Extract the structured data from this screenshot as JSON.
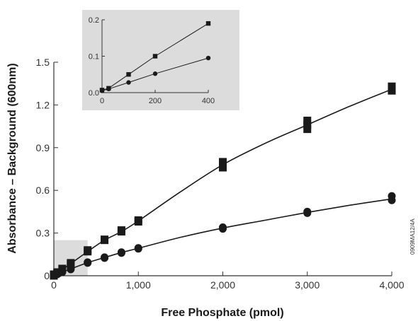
{
  "chart_data": [
    {
      "type": "scatter",
      "xlabel": "Free Phosphate (pmol)",
      "ylabel": "Absorbance – Background (600nm)",
      "xlim": [
        0,
        4000
      ],
      "ylim": [
        0,
        1.5
      ],
      "x_ticks": [
        0,
        1000,
        2000,
        3000,
        4000
      ],
      "x_tick_labels": [
        "0",
        "1,000",
        "2,000",
        "3,000",
        "4,000"
      ],
      "y_ticks": [
        0,
        0.3,
        0.6,
        0.9,
        1.2,
        1.5
      ],
      "y_tick_labels": [
        "0",
        "0.3",
        "0.6",
        "0.9",
        "1.2",
        "1.5"
      ],
      "grid": false,
      "highlight_region": {
        "x": [
          0,
          400
        ],
        "y": [
          0,
          0.25
        ]
      },
      "series": [
        {
          "marker": "square",
          "color": "#1a1a1a",
          "points": [
            [
              0,
              0.0
            ],
            [
              0,
              0.01
            ],
            [
              40,
              0.02
            ],
            [
              40,
              0.025
            ],
            [
              100,
              0.05
            ],
            [
              100,
              0.045
            ],
            [
              200,
              0.09
            ],
            [
              200,
              0.08
            ],
            [
              400,
              0.17
            ],
            [
              400,
              0.18
            ],
            [
              600,
              0.25
            ],
            [
              600,
              0.255
            ],
            [
              800,
              0.31
            ],
            [
              800,
              0.32
            ],
            [
              1000,
              0.38
            ],
            [
              1000,
              0.39
            ],
            [
              2000,
              0.76
            ],
            [
              2000,
              0.8
            ],
            [
              3000,
              1.03
            ],
            [
              3000,
              1.06
            ],
            [
              3000,
              1.09
            ],
            [
              4000,
              1.3
            ],
            [
              4000,
              1.33
            ]
          ],
          "curve": [
            [
              0,
              0.0
            ],
            [
              200,
              0.085
            ],
            [
              400,
              0.17
            ],
            [
              600,
              0.25
            ],
            [
              800,
              0.31
            ],
            [
              1000,
              0.385
            ],
            [
              1500,
              0.59
            ],
            [
              2000,
              0.78
            ],
            [
              2500,
              0.93
            ],
            [
              3000,
              1.06
            ],
            [
              3500,
              1.19
            ],
            [
              4000,
              1.31
            ]
          ]
        },
        {
          "marker": "circle",
          "color": "#1a1a1a",
          "points": [
            [
              0,
              0.0
            ],
            [
              0,
              0.01
            ],
            [
              40,
              0.01
            ],
            [
              40,
              0.015
            ],
            [
              100,
              0.03
            ],
            [
              100,
              0.025
            ],
            [
              200,
              0.05
            ],
            [
              200,
              0.045
            ],
            [
              400,
              0.09
            ],
            [
              400,
              0.095
            ],
            [
              600,
              0.13
            ],
            [
              600,
              0.125
            ],
            [
              800,
              0.16
            ],
            [
              800,
              0.165
            ],
            [
              1000,
              0.19
            ],
            [
              1000,
              0.195
            ],
            [
              2000,
              0.33
            ],
            [
              2000,
              0.34
            ],
            [
              3000,
              0.44
            ],
            [
              3000,
              0.45
            ],
            [
              4000,
              0.53
            ],
            [
              4000,
              0.56
            ]
          ],
          "curve": [
            [
              0,
              0.0
            ],
            [
              200,
              0.048
            ],
            [
              400,
              0.092
            ],
            [
              600,
              0.128
            ],
            [
              800,
              0.163
            ],
            [
              1000,
              0.193
            ],
            [
              1500,
              0.27
            ],
            [
              2000,
              0.335
            ],
            [
              2500,
              0.39
            ],
            [
              3000,
              0.445
            ],
            [
              3500,
              0.495
            ],
            [
              4000,
              0.54
            ]
          ]
        }
      ]
    },
    {
      "type": "scatter",
      "role": "inset",
      "xlim": [
        0,
        400
      ],
      "ylim": [
        0,
        0.2
      ],
      "x_ticks": [
        0,
        200,
        400
      ],
      "x_tick_labels": [
        "0",
        "200",
        "400"
      ],
      "y_ticks": [
        0.0,
        0.1,
        0.2
      ],
      "y_tick_labels": [
        "0.0",
        "0.1",
        "0.2"
      ],
      "background": "#dcdcdc",
      "series": [
        {
          "marker": "square",
          "color": "#1a1a1a",
          "points": [
            [
              0,
              0.007
            ],
            [
              25,
              0.012
            ],
            [
              100,
              0.05
            ],
            [
              200,
              0.1
            ],
            [
              400,
              0.19
            ]
          ]
        },
        {
          "marker": "circle",
          "color": "#1a1a1a",
          "points": [
            [
              0,
              0.005
            ],
            [
              25,
              0.01
            ],
            [
              100,
              0.028
            ],
            [
              200,
              0.052
            ],
            [
              400,
              0.095
            ]
          ]
        }
      ]
    }
  ],
  "side_code": "0909MA12/4A"
}
